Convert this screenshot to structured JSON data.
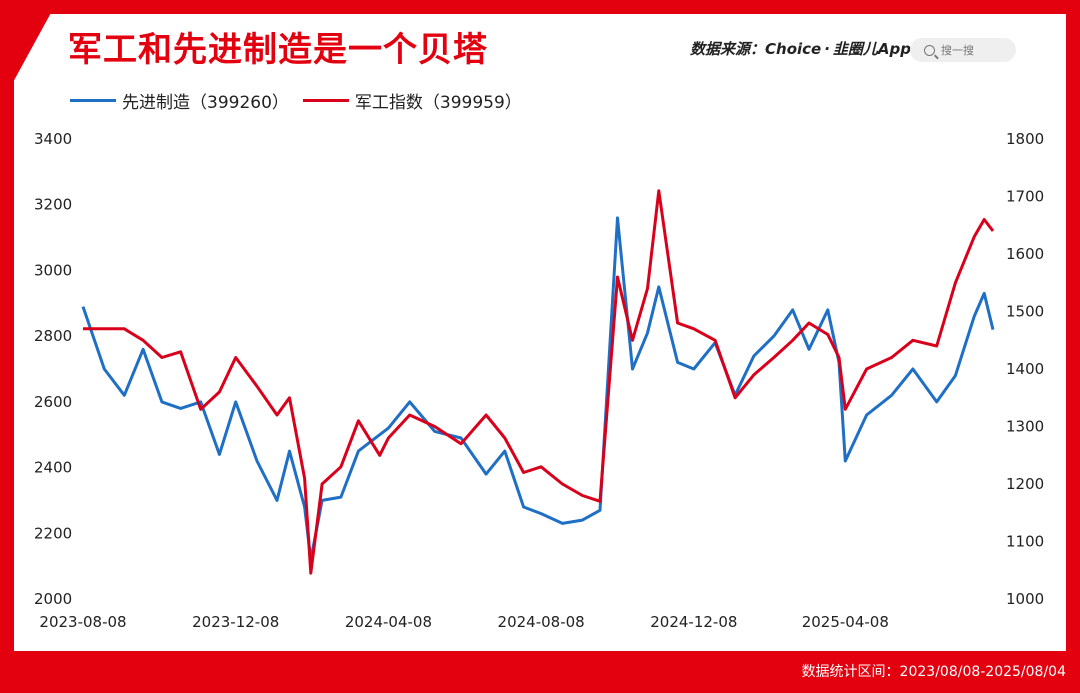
{
  "header": {
    "title": "军工和先进制造是一个贝塔",
    "source_label": "数据来源：Choice",
    "source_sep": "·",
    "source_logo": "韭圈儿App",
    "search_placeholder": "搜一搜"
  },
  "footer": {
    "range_text": "数据统计区间：2023/08/08-2025/08/04"
  },
  "colors": {
    "brand_red": "#e3000f",
    "series_blue": "#1f6fc5",
    "series_red": "#d9001b"
  },
  "chart_data": {
    "type": "line",
    "x_ticks": [
      "2023-08-08",
      "2023-12-08",
      "2024-04-08",
      "2024-08-08",
      "2024-12-08",
      "2025-04-08"
    ],
    "x_range": [
      "2023-08-08",
      "2025-08-04"
    ],
    "y_left": {
      "min": 2000,
      "max": 3400,
      "ticks": [
        2000,
        2200,
        2400,
        2600,
        2800,
        3000,
        3200,
        3400
      ]
    },
    "y_right": {
      "min": 1000,
      "max": 1800,
      "ticks": [
        1000,
        1100,
        1200,
        1300,
        1400,
        1500,
        1600,
        1700,
        1800
      ]
    },
    "grid": false,
    "legend": "top-left",
    "series": [
      {
        "name": "先进制造（399260）",
        "axis": "left",
        "points": [
          [
            "2023-08-08",
            2890
          ],
          [
            "2023-08-25",
            2700
          ],
          [
            "2023-09-10",
            2620
          ],
          [
            "2023-09-25",
            2760
          ],
          [
            "2023-10-10",
            2600
          ],
          [
            "2023-10-25",
            2580
          ],
          [
            "2023-11-10",
            2600
          ],
          [
            "2023-11-25",
            2440
          ],
          [
            "2023-12-08",
            2600
          ],
          [
            "2023-12-25",
            2420
          ],
          [
            "2024-01-10",
            2300
          ],
          [
            "2024-01-20",
            2450
          ],
          [
            "2024-02-01",
            2280
          ],
          [
            "2024-02-06",
            2120
          ],
          [
            "2024-02-15",
            2300
          ],
          [
            "2024-03-01",
            2310
          ],
          [
            "2024-03-15",
            2450
          ],
          [
            "2024-04-01",
            2500
          ],
          [
            "2024-04-08",
            2520
          ],
          [
            "2024-04-25",
            2600
          ],
          [
            "2024-05-15",
            2510
          ],
          [
            "2024-06-05",
            2490
          ],
          [
            "2024-06-25",
            2380
          ],
          [
            "2024-07-10",
            2450
          ],
          [
            "2024-07-25",
            2280
          ],
          [
            "2024-08-08",
            2260
          ],
          [
            "2024-08-25",
            2230
          ],
          [
            "2024-09-10",
            2240
          ],
          [
            "2024-09-24",
            2270
          ],
          [
            "2024-10-08",
            3160
          ],
          [
            "2024-10-20",
            2700
          ],
          [
            "2024-11-01",
            2810
          ],
          [
            "2024-11-10",
            2950
          ],
          [
            "2024-11-25",
            2720
          ],
          [
            "2024-12-08",
            2700
          ],
          [
            "2024-12-25",
            2780
          ],
          [
            "2025-01-10",
            2620
          ],
          [
            "2025-01-25",
            2740
          ],
          [
            "2025-02-10",
            2800
          ],
          [
            "2025-02-25",
            2880
          ],
          [
            "2025-03-10",
            2760
          ],
          [
            "2025-03-25",
            2880
          ],
          [
            "2025-04-03",
            2720
          ],
          [
            "2025-04-08",
            2420
          ],
          [
            "2025-04-25",
            2560
          ],
          [
            "2025-05-15",
            2620
          ],
          [
            "2025-06-01",
            2700
          ],
          [
            "2025-06-20",
            2600
          ],
          [
            "2025-07-05",
            2680
          ],
          [
            "2025-07-20",
            2860
          ],
          [
            "2025-07-28",
            2930
          ],
          [
            "2025-08-04",
            2820
          ]
        ]
      },
      {
        "name": "军工指数（399959）",
        "axis": "right",
        "points": [
          [
            "2023-08-08",
            1470
          ],
          [
            "2023-08-25",
            1470
          ],
          [
            "2023-09-10",
            1470
          ],
          [
            "2023-09-25",
            1450
          ],
          [
            "2023-10-10",
            1420
          ],
          [
            "2023-10-25",
            1430
          ],
          [
            "2023-11-10",
            1330
          ],
          [
            "2023-11-25",
            1360
          ],
          [
            "2023-12-08",
            1420
          ],
          [
            "2023-12-25",
            1370
          ],
          [
            "2024-01-10",
            1320
          ],
          [
            "2024-01-20",
            1350
          ],
          [
            "2024-02-01",
            1210
          ],
          [
            "2024-02-06",
            1045
          ],
          [
            "2024-02-15",
            1200
          ],
          [
            "2024-03-01",
            1230
          ],
          [
            "2024-03-15",
            1310
          ],
          [
            "2024-04-01",
            1250
          ],
          [
            "2024-04-08",
            1280
          ],
          [
            "2024-04-25",
            1320
          ],
          [
            "2024-05-15",
            1300
          ],
          [
            "2024-06-05",
            1270
          ],
          [
            "2024-06-25",
            1320
          ],
          [
            "2024-07-10",
            1280
          ],
          [
            "2024-07-25",
            1220
          ],
          [
            "2024-08-08",
            1230
          ],
          [
            "2024-08-25",
            1200
          ],
          [
            "2024-09-10",
            1180
          ],
          [
            "2024-09-24",
            1170
          ],
          [
            "2024-10-08",
            1560
          ],
          [
            "2024-10-20",
            1450
          ],
          [
            "2024-11-01",
            1540
          ],
          [
            "2024-11-10",
            1710
          ],
          [
            "2024-11-25",
            1480
          ],
          [
            "2024-12-08",
            1470
          ],
          [
            "2024-12-25",
            1450
          ],
          [
            "2025-01-10",
            1350
          ],
          [
            "2025-01-25",
            1390
          ],
          [
            "2025-02-10",
            1420
          ],
          [
            "2025-02-25",
            1450
          ],
          [
            "2025-03-10",
            1480
          ],
          [
            "2025-03-25",
            1460
          ],
          [
            "2025-04-03",
            1420
          ],
          [
            "2025-04-08",
            1330
          ],
          [
            "2025-04-25",
            1400
          ],
          [
            "2025-05-15",
            1420
          ],
          [
            "2025-06-01",
            1450
          ],
          [
            "2025-06-20",
            1440
          ],
          [
            "2025-07-05",
            1550
          ],
          [
            "2025-07-20",
            1630
          ],
          [
            "2025-07-28",
            1660
          ],
          [
            "2025-08-04",
            1640
          ]
        ]
      }
    ]
  }
}
